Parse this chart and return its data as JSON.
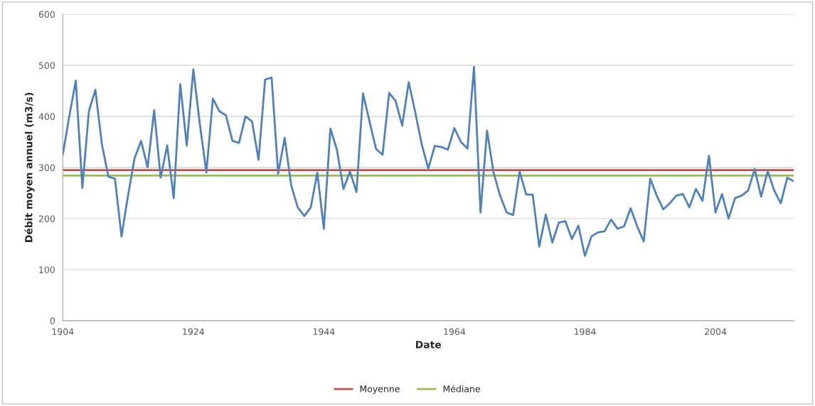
{
  "chart_data": {
    "type": "line",
    "xlabel": "Date",
    "ylabel": "Débit moyen annuel (m3/s)",
    "x": [
      1904,
      1905,
      1906,
      1907,
      1908,
      1909,
      1910,
      1911,
      1912,
      1913,
      1914,
      1915,
      1916,
      1917,
      1918,
      1919,
      1920,
      1921,
      1922,
      1923,
      1924,
      1925,
      1926,
      1927,
      1928,
      1929,
      1930,
      1931,
      1932,
      1933,
      1934,
      1935,
      1936,
      1937,
      1938,
      1939,
      1940,
      1941,
      1942,
      1943,
      1944,
      1945,
      1946,
      1947,
      1948,
      1949,
      1950,
      1951,
      1952,
      1953,
      1954,
      1955,
      1956,
      1957,
      1958,
      1959,
      1960,
      1961,
      1962,
      1963,
      1964,
      1965,
      1966,
      1967,
      1968,
      1969,
      1970,
      1971,
      1972,
      1973,
      1974,
      1975,
      1976,
      1977,
      1978,
      1979,
      1980,
      1981,
      1982,
      1983,
      1984,
      1985,
      1986,
      1987,
      1988,
      1989,
      1990,
      1991,
      1992,
      1993,
      1994,
      1995,
      1996,
      1997,
      1998,
      1999,
      2000,
      2001,
      2002,
      2003,
      2004,
      2005,
      2006,
      2007,
      2008,
      2009,
      2010,
      2011,
      2012,
      2013,
      2014,
      2015,
      2016
    ],
    "series": [
      {
        "color": "#4f81bd",
        "values": [
          325,
          400,
          470,
          260,
          410,
          452,
          345,
          282,
          278,
          165,
          245,
          318,
          352,
          300,
          412,
          280,
          343,
          240,
          463,
          343,
          492,
          385,
          290,
          435,
          410,
          402,
          352,
          348,
          400,
          390,
          315,
          472,
          476,
          288,
          358,
          265,
          222,
          205,
          222,
          290,
          180,
          376,
          335,
          258,
          292,
          252,
          445,
          390,
          336,
          325,
          446,
          430,
          382,
          467,
          408,
          345,
          298,
          342,
          340,
          335,
          377,
          350,
          337,
          497,
          212,
          372,
          290,
          245,
          212,
          207,
          292,
          247,
          247,
          145,
          208,
          153,
          192,
          195,
          160,
          186,
          127,
          165,
          173,
          175,
          198,
          180,
          185,
          220,
          185,
          155,
          278,
          245,
          218,
          230,
          245,
          248,
          222,
          258,
          235,
          323,
          212,
          248,
          200,
          240,
          245,
          255,
          297,
          243,
          293,
          255,
          230,
          280,
          273
        ]
      }
    ],
    "xlim": [
      1904,
      2016
    ],
    "xticks": [
      1904,
      1924,
      1944,
      1964,
      1984,
      2004
    ],
    "ylim": [
      0,
      600
    ],
    "yticks": [
      0,
      100,
      200,
      300,
      400,
      500,
      600
    ],
    "ref_lines": [
      {
        "axis": "y",
        "value": 295,
        "label": "Moyenne",
        "color": "#c0504d"
      },
      {
        "axis": "y",
        "value": 284,
        "label": "Médiane",
        "color": "#9bbb59"
      }
    ],
    "grid": "y",
    "legend": "bottom",
    "marker": "none",
    "line_style": "solid"
  }
}
